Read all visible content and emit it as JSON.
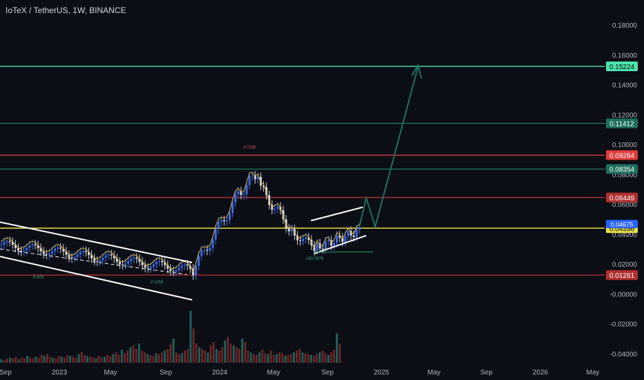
{
  "header": {
    "title": "IoTeX / TetherUS, 1W, BINANCE"
  },
  "chart_data": {
    "type": "candlestick",
    "y_axis": {
      "ticks": [
        "0.18000",
        "0.16000",
        "0.14000",
        "0.12000",
        "0.10000",
        "0.08000",
        "0.06000",
        "0.04000",
        "0.02000",
        "-0.00000",
        "-0.02000",
        "-0.04000"
      ],
      "range": [
        -0.042,
        0.198
      ]
    },
    "x_axis": {
      "ticks": [
        "Sep",
        "2023",
        "May",
        "Sep",
        "2024",
        "May",
        "Sep",
        "2025",
        "May",
        "Sep",
        "2026",
        "May"
      ],
      "range": [
        "2022-08-25",
        "2026-06-15"
      ]
    },
    "levels": [
      {
        "label": "0.15224",
        "value": 0.15224,
        "color": "#4ee4b0"
      },
      {
        "label": "0.11412",
        "value": 0.11412,
        "color": "#1e6f5c"
      },
      {
        "label": "0.09284",
        "value": 0.09284,
        "color": "#e03c3c"
      },
      {
        "label": "0.08354",
        "value": 0.08354,
        "color": "#1e6f5c"
      },
      {
        "label": "0.06449",
        "value": 0.06449,
        "color": "#b03030"
      },
      {
        "label": "0.04396",
        "value": 0.04396,
        "color": "#e8e04a"
      },
      {
        "label": "0.01261",
        "value": 0.01261,
        "color": "#b03030"
      }
    ],
    "current_price_label": "0.04675",
    "annotations": [
      "4.7238",
      "6.478",
      "2.1258",
      "130.7876"
    ],
    "volume_bars": [
      4,
      3,
      5,
      6,
      5,
      7,
      4,
      6,
      5,
      8,
      6,
      5,
      7,
      6,
      9,
      8,
      10,
      7,
      6,
      5,
      8,
      7,
      6,
      9,
      8,
      7,
      6,
      10,
      12,
      9,
      8,
      7,
      6,
      5,
      8,
      6,
      7,
      9,
      8,
      10,
      12,
      9,
      15,
      11,
      14,
      18,
      20,
      16,
      22,
      14,
      12,
      10,
      9,
      8,
      11,
      10,
      12,
      14,
      16,
      22,
      28,
      12,
      10,
      11,
      14,
      16,
      60,
      40,
      22,
      18,
      16,
      14,
      12,
      20,
      24,
      16,
      14,
      18,
      26,
      30,
      22,
      20,
      18,
      16,
      28,
      24,
      14,
      12,
      10,
      9,
      12,
      15,
      11,
      10,
      14,
      9,
      10,
      12,
      11,
      8,
      9,
      10,
      12,
      14,
      16,
      12,
      11,
      10,
      9,
      8,
      10,
      12,
      14,
      11,
      9,
      12,
      15,
      34,
      22
    ]
  }
}
